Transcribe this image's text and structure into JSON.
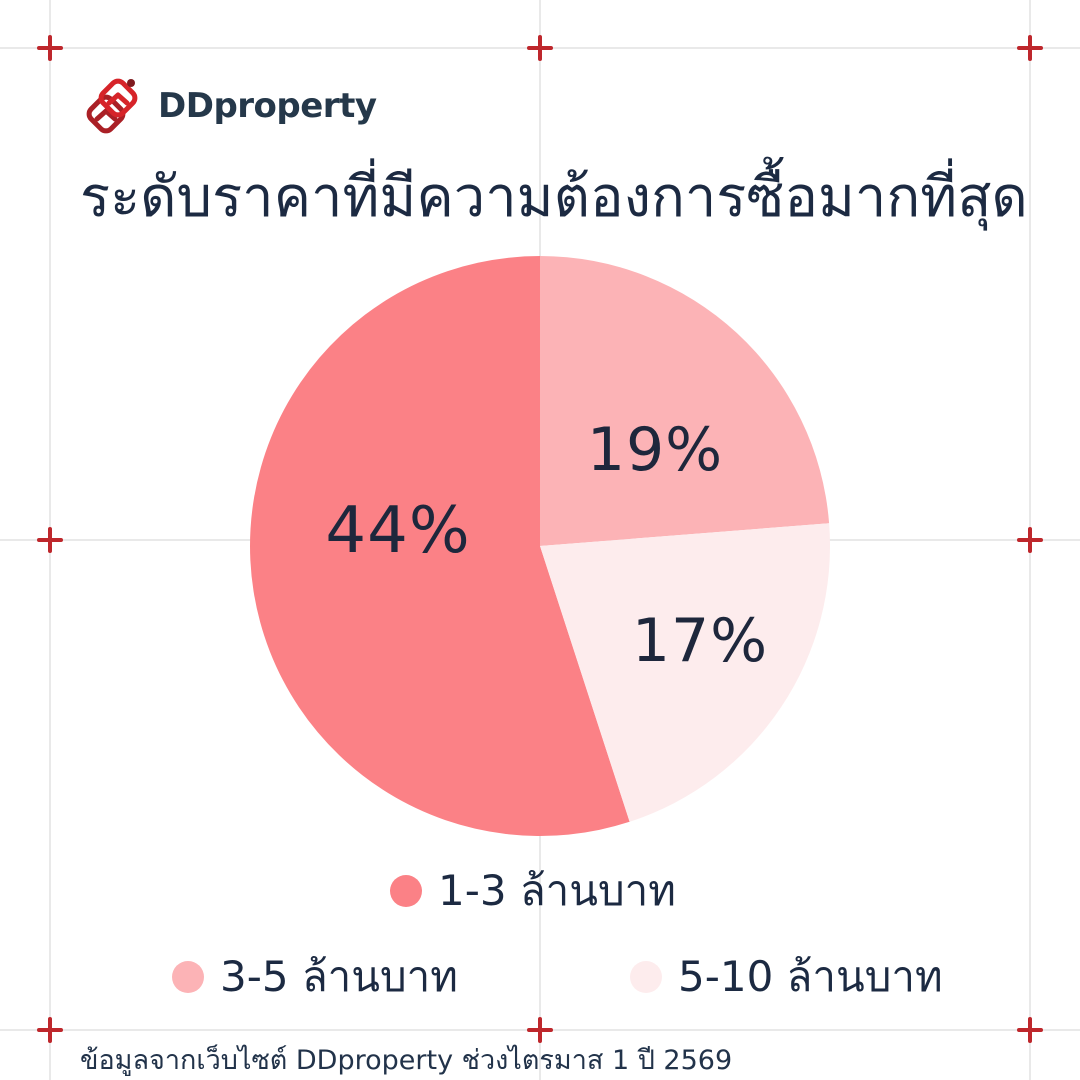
{
  "brand": {
    "name": "DDproperty"
  },
  "title": "ระดับราคาที่มีความต้องการซื้อมากที่สุด",
  "chart_data": {
    "type": "pie",
    "title": "ระดับราคาที่มีความต้องการซื้อมากที่สุด",
    "slices": [
      {
        "label": "1-3 ล้านบาท",
        "value": 44,
        "pct_label": "44%",
        "color": "#FB8186"
      },
      {
        "label": "3-5 ล้านบาท",
        "value": 19,
        "pct_label": "19%",
        "color": "#FCB3B6"
      },
      {
        "label": "5-10 ล้านบาท",
        "value": 17,
        "pct_label": "17%",
        "color": "#FDECED"
      }
    ],
    "rotation_deg": 162,
    "direction": "clockwise",
    "legend_position": "bottom",
    "label_color": "#1E273C"
  },
  "source_note": "ข้อมูลจากเว็บไซต์ DDproperty ช่วงไตรมาส 1 ปี 2569",
  "colors": {
    "accent_coral": "#FB8186",
    "accent_pink": "#FCB3B6",
    "accent_light_pink": "#FDECED",
    "text_navy": "#1C2A42",
    "crop_mark_red": "#BE272C",
    "grid_gray": "#E9E9E9",
    "logo_red_bright": "#D62429",
    "logo_red_dark": "#AA2026"
  }
}
